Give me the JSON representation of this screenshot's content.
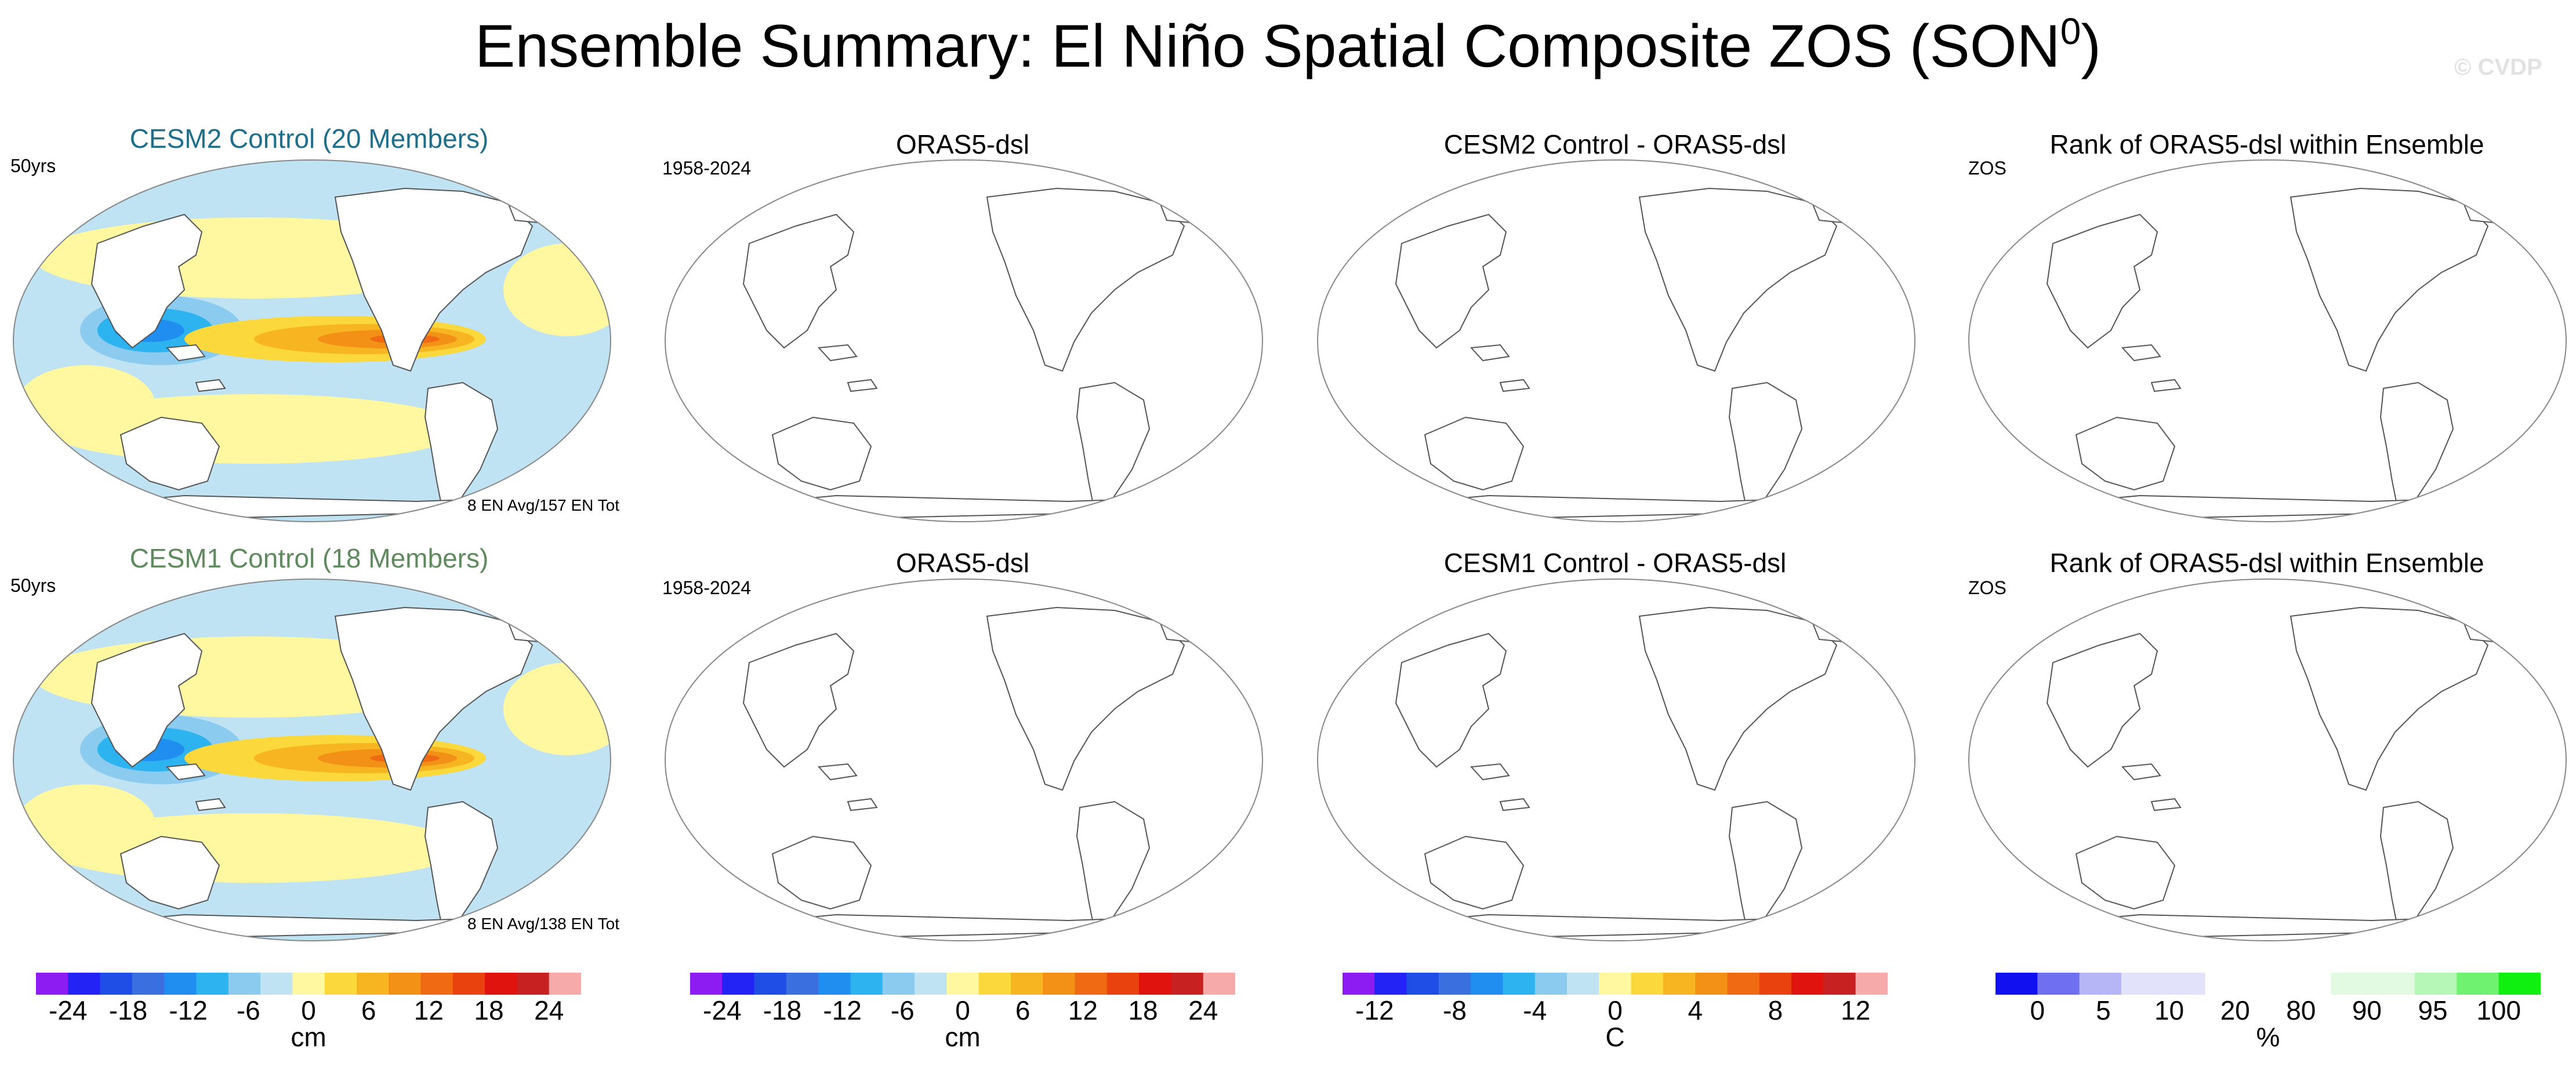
{
  "header": {
    "title_main": "Ensemble Summary: El Niño Spatial Composite ZOS (SON",
    "title_sup": "0",
    "title_end": ")",
    "watermark": "© CVDP"
  },
  "panels": [
    {
      "title": "CESM2 Control (20 Members)",
      "title_color": "#1f6e8c",
      "left_label": "50yrs",
      "footer": "8 EN Avg/157 EN Tot",
      "filled": true
    },
    {
      "title": "ORAS5-dsl",
      "title_color": "#000000",
      "left_label": "1958-2024",
      "footer": "",
      "filled": false
    },
    {
      "title": "CESM2 Control - ORAS5-dsl",
      "title_color": "#000000",
      "left_label": "",
      "footer": "",
      "filled": false
    },
    {
      "title": "Rank of ORAS5-dsl within Ensemble",
      "title_color": "#000000",
      "left_label": "ZOS",
      "footer": "",
      "filled": false
    },
    {
      "title": "CESM1 Control (18 Members)",
      "title_color": "#5e8a5e",
      "left_label": "50yrs",
      "footer": "8 EN Avg/138 EN Tot",
      "filled": true
    },
    {
      "title": "ORAS5-dsl",
      "title_color": "#000000",
      "left_label": "1958-2024",
      "footer": "",
      "filled": false
    },
    {
      "title": "CESM1 Control - ORAS5-dsl",
      "title_color": "#000000",
      "left_label": "",
      "footer": "",
      "filled": false
    },
    {
      "title": "Rank of ORAS5-dsl within Ensemble",
      "title_color": "#000000",
      "left_label": "ZOS",
      "footer": "",
      "filled": false
    }
  ],
  "colorbars": [
    {
      "colors": [
        "#8c1cf2",
        "#2323f5",
        "#1f4ee6",
        "#3a6fe0",
        "#1f8ef0",
        "#2cb3f0",
        "#8ccbf0",
        "#bfe3f2",
        "#fff8a0",
        "#fbd93c",
        "#f7b521",
        "#f39117",
        "#ef6a12",
        "#e9420f",
        "#e0130f",
        "#c82121",
        "#f7aaaa"
      ],
      "ticks": [
        "-24",
        "-18",
        "-12",
        "-6",
        "0",
        "6",
        "12",
        "18",
        "24"
      ],
      "unit": "cm"
    },
    {
      "colors": [
        "#8c1cf2",
        "#2323f5",
        "#1f4ee6",
        "#3a6fe0",
        "#1f8ef0",
        "#2cb3f0",
        "#8ccbf0",
        "#bfe3f2",
        "#fff8a0",
        "#fbd93c",
        "#f7b521",
        "#f39117",
        "#ef6a12",
        "#e9420f",
        "#e0130f",
        "#c82121",
        "#f7aaaa"
      ],
      "ticks": [
        "-24",
        "-18",
        "-12",
        "-6",
        "0",
        "6",
        "12",
        "18",
        "24"
      ],
      "unit": "cm"
    },
    {
      "colors": [
        "#8c1cf2",
        "#2323f5",
        "#1f4ee6",
        "#3a6fe0",
        "#1f8ef0",
        "#2cb3f0",
        "#8ccbf0",
        "#bfe3f2",
        "#fff8a0",
        "#fbd93c",
        "#f7b521",
        "#f39117",
        "#ef6a12",
        "#e9420f",
        "#e0130f",
        "#c82121",
        "#f7aaaa"
      ],
      "ticks": [
        "-12",
        "-8",
        "-4",
        "0",
        "4",
        "8",
        "12"
      ],
      "unit": "C"
    },
    {
      "colors": [
        "#1010f0",
        "#6f6ff2",
        "#b6b6f6",
        "#e2e2fa",
        "#e2e2fa",
        "#ffffff",
        "#ffffff",
        "#ffffff",
        "#e2fae2",
        "#e2fae2",
        "#b6f6b6",
        "#6ff26f",
        "#10f010"
      ],
      "ticks": [
        "0",
        "5",
        "10",
        "20",
        "80",
        "90",
        "95",
        "100"
      ],
      "unit": "%"
    }
  ]
}
